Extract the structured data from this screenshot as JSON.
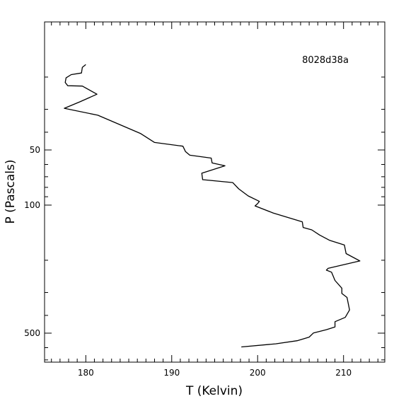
{
  "chart_data": {
    "type": "line",
    "title": "",
    "annotation": "8028d38a",
    "xlabel": "T (Kelvin)",
    "ylabel": "P (Pascals)",
    "xlim": [
      175.2,
      214.8
    ],
    "ylim": [
      10,
      720
    ],
    "yscale": "log",
    "y_inverted": true,
    "grid": false,
    "x_major_ticks": [
      180,
      190,
      200,
      210
    ],
    "x_tick_labels": [
      "180",
      "190",
      "200",
      "210"
    ],
    "y_major_ticks": [
      50,
      100,
      500
    ],
    "y_tick_labels": [
      "50",
      "100",
      "500"
    ],
    "series": [
      {
        "x": [
          180.0,
          179.6,
          179.5,
          178.3,
          177.7,
          177.6,
          177.9,
          179.6,
          181.3,
          179.3,
          177.5,
          181.4,
          186.4,
          188.0,
          191.3,
          191.6,
          192.1,
          194.6,
          194.7,
          196.2,
          193.5,
          193.6,
          197.1,
          197.8,
          198.9,
          200.2,
          200.0,
          199.7,
          201.8,
          205.2,
          205.3,
          206.3,
          207.2,
          208.4,
          210.1,
          210.3,
          211.9,
          208.2,
          208.0,
          208.6,
          209.0,
          209.8,
          209.8,
          210.4,
          210.7,
          210.2,
          209.0,
          209.0,
          208.0,
          206.5,
          206.0,
          204.6,
          202.1,
          198.1
        ],
        "y": [
          17.1,
          17.7,
          19.0,
          19.4,
          20.2,
          21.4,
          22.3,
          22.4,
          24.8,
          27.3,
          29.6,
          32.3,
          40.7,
          45.5,
          47.7,
          51.0,
          53.4,
          55.4,
          58.9,
          61.0,
          67.0,
          72.6,
          75.3,
          81.5,
          89.1,
          95.4,
          98.2,
          101.0,
          110.4,
          123.4,
          132.5,
          136.5,
          145.6,
          155.9,
          165.2,
          183.9,
          201.7,
          221.4,
          226.5,
          232.4,
          257.8,
          284.0,
          303.7,
          319.1,
          373.4,
          410.1,
          432.9,
          462.9,
          478.7,
          498.5,
          525.6,
          549.8,
          572.0,
          594.5
        ]
      }
    ]
  }
}
